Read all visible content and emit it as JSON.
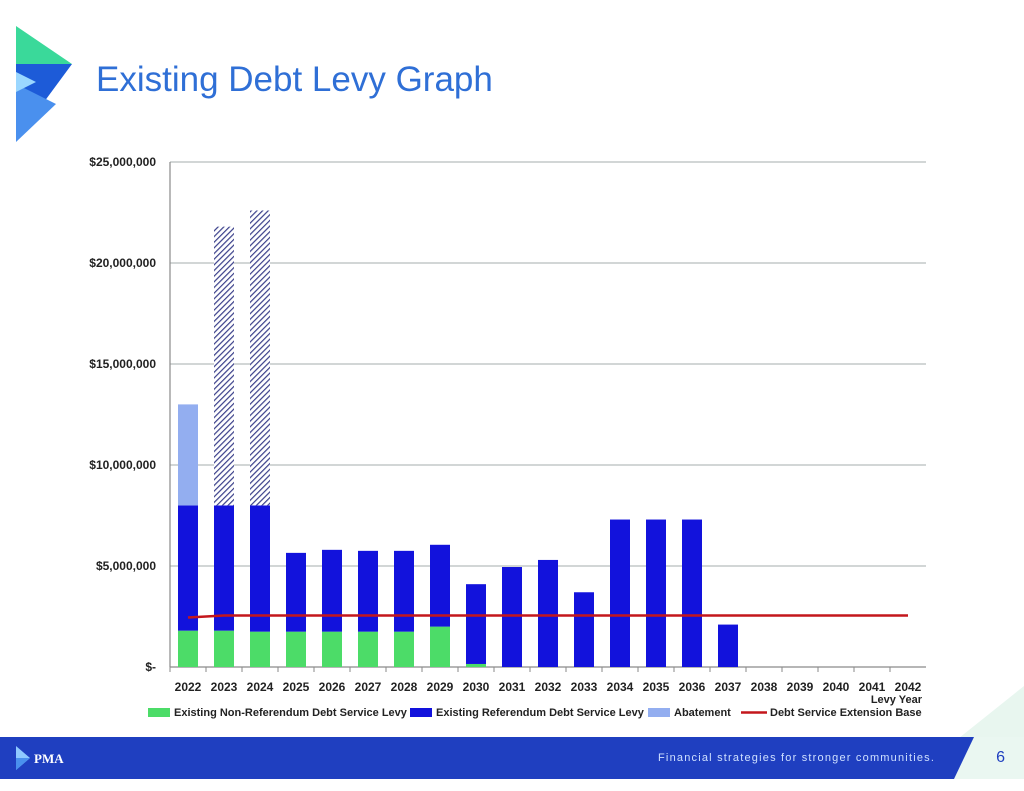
{
  "slide": {
    "title": "Existing Debt Levy Graph",
    "tagline": "Financial strategies for stronger communities.",
    "page_number": "6",
    "logo_text": "PMA"
  },
  "colors": {
    "title": "#2f6fd6",
    "non_referendum": "#4cdc68",
    "referendum": "#1212dc",
    "abatement": "#93aef0",
    "hatched": "#3a3f8a",
    "extension_base": "#c4161c",
    "footer": "#1f3fc0"
  },
  "chart_data": {
    "type": "bar",
    "stacked": true,
    "xlabel": "Levy Year",
    "ylabel": "",
    "ylim": [
      0,
      25000000
    ],
    "yticks": [
      0,
      5000000,
      10000000,
      15000000,
      20000000,
      25000000
    ],
    "ytick_labels": [
      "$-",
      "$5,000,000",
      "$10,000,000",
      "$15,000,000",
      "$20,000,000",
      "$25,000,000"
    ],
    "grid": true,
    "legend_position": "bottom",
    "categories": [
      "2022",
      "2023",
      "2024",
      "2025",
      "2026",
      "2027",
      "2028",
      "2029",
      "2030",
      "2031",
      "2032",
      "2033",
      "2034",
      "2035",
      "2036",
      "2037",
      "2038",
      "2039",
      "2040",
      "2041",
      "2042"
    ],
    "series": [
      {
        "name": "Existing Non-Referendum Debt Service Levy",
        "kind": "bar",
        "values": [
          1800000,
          1800000,
          1750000,
          1750000,
          1750000,
          1750000,
          1750000,
          2000000,
          150000,
          0,
          0,
          0,
          0,
          0,
          0,
          0,
          0,
          0,
          0,
          0,
          0
        ]
      },
      {
        "name": "Existing Referendum Debt Service Levy",
        "kind": "bar",
        "values": [
          6200000,
          6200000,
          6250000,
          3900000,
          4050000,
          4000000,
          4000000,
          4050000,
          3950000,
          4950000,
          5300000,
          3700000,
          7300000,
          7300000,
          7300000,
          2100000,
          0,
          0,
          0,
          0,
          0
        ]
      },
      {
        "name": "Abatement",
        "kind": "bar",
        "values": [
          5000000,
          0,
          0,
          0,
          0,
          0,
          0,
          0,
          0,
          0,
          0,
          0,
          0,
          0,
          0,
          0,
          0,
          0,
          0,
          0,
          0
        ]
      },
      {
        "name": "",
        "kind": "bar",
        "pattern": "hatched",
        "values": [
          0,
          13800000,
          14600000,
          0,
          0,
          0,
          0,
          0,
          0,
          0,
          0,
          0,
          0,
          0,
          0,
          0,
          0,
          0,
          0,
          0,
          0
        ]
      },
      {
        "name": "Debt Service Extension Base",
        "kind": "line",
        "values": [
          2450000,
          2550000,
          2550000,
          2550000,
          2550000,
          2550000,
          2550000,
          2550000,
          2550000,
          2550000,
          2550000,
          2550000,
          2550000,
          2550000,
          2550000,
          2550000,
          2550000,
          2550000,
          2550000,
          2550000,
          2550000
        ]
      }
    ]
  }
}
